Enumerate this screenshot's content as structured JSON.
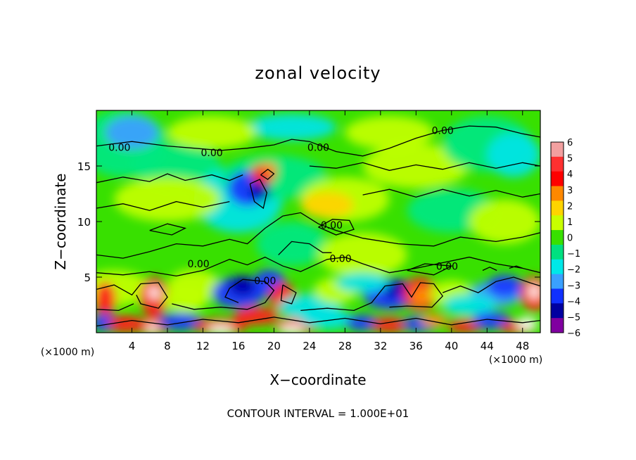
{
  "chart_data": {
    "type": "heatmap",
    "title": "zonal velocity",
    "xlabel": "X−coordinate",
    "ylabel": "Z−coordinate",
    "x_unit": "(×1000 m)",
    "y_unit": "(×1000 m)",
    "xlim": [
      0,
      50
    ],
    "ylim": [
      0,
      20
    ],
    "x_ticks": [
      4,
      8,
      12,
      16,
      20,
      24,
      28,
      32,
      36,
      40,
      44,
      48
    ],
    "y_ticks": [
      5,
      10,
      15
    ],
    "footer": "CONTOUR INTERVAL = 1.000E+01",
    "contour_label": "0.00",
    "contour_labels": [
      {
        "x": 2.6,
        "z": 16.5,
        "text": "0.00"
      },
      {
        "x": 13.0,
        "z": 16.0,
        "text": "0.00"
      },
      {
        "x": 25.0,
        "z": 16.5,
        "text": "0.00"
      },
      {
        "x": 39.0,
        "z": 18.0,
        "text": "0.00"
      },
      {
        "x": 26.5,
        "z": 9.5,
        "text": "0.00"
      },
      {
        "x": 11.5,
        "z": 6.0,
        "text": "0.00"
      },
      {
        "x": 27.5,
        "z": 6.5,
        "text": "0.00"
      },
      {
        "x": 39.5,
        "z": 5.8,
        "text": "0.00"
      },
      {
        "x": 19.0,
        "z": 4.5,
        "text": "0.00"
      }
    ],
    "colorbar": {
      "levels": [
        "6",
        "5",
        "4",
        "3",
        "2",
        "1",
        "0",
        "−1",
        "−2",
        "−3",
        "−4",
        "−5",
        "−6"
      ],
      "colors": [
        "#f2a0a0",
        "#ff3030",
        "#ff0000",
        "#ff8800",
        "#ffd400",
        "#c8ff00",
        "#38e000",
        "#00e080",
        "#00e8e8",
        "#3aa0ff",
        "#1030ff",
        "#0000a0",
        "#8000a0"
      ]
    }
  }
}
